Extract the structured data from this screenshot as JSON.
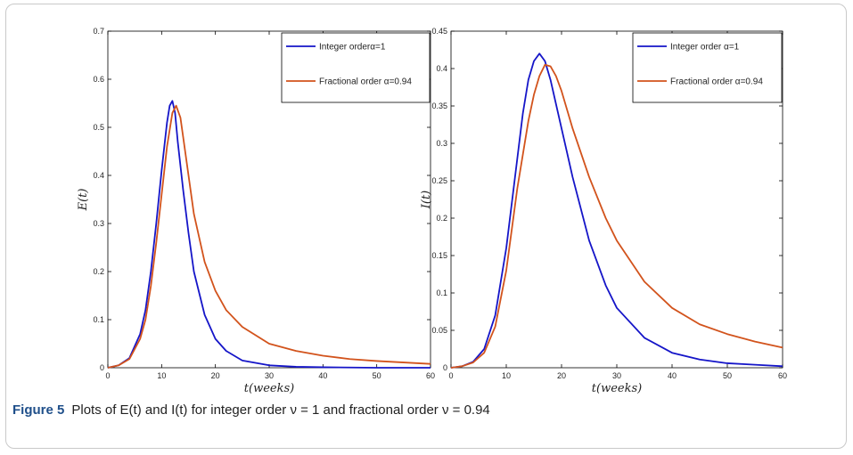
{
  "caption": {
    "label": "Figure 5",
    "text": "Plots of E(t) and I(t) for integer order ν = 1 and fractional order ν = 0.94"
  },
  "colors": {
    "integer": "#1515c8",
    "fractional": "#d2531c"
  },
  "chart_data": [
    {
      "type": "line",
      "xlabel": "t(weeks)",
      "ylabel": "E(t)",
      "xlim": [
        0,
        60
      ],
      "ylim": [
        0,
        0.7
      ],
      "xticks": [
        "0",
        "10",
        "20",
        "30",
        "40",
        "50",
        "60"
      ],
      "yticks": [
        "0",
        "0.1",
        "0.2",
        "0.3",
        "0.4",
        "0.5",
        "0.6",
        "0.7"
      ],
      "legend_position": "top-right",
      "series": [
        {
          "name": "Integer orderα=1",
          "color": "#1515c8",
          "points": [
            [
              0,
              0
            ],
            [
              2,
              0.005
            ],
            [
              4,
              0.02
            ],
            [
              6,
              0.07
            ],
            [
              7,
              0.12
            ],
            [
              8,
              0.2
            ],
            [
              9,
              0.3
            ],
            [
              10,
              0.41
            ],
            [
              11,
              0.51
            ],
            [
              11.5,
              0.545
            ],
            [
              12,
              0.555
            ],
            [
              12.5,
              0.53
            ],
            [
              13,
              0.47
            ],
            [
              14,
              0.37
            ],
            [
              15,
              0.28
            ],
            [
              16,
              0.2
            ],
            [
              18,
              0.11
            ],
            [
              20,
              0.06
            ],
            [
              22,
              0.035
            ],
            [
              25,
              0.015
            ],
            [
              30,
              0.005
            ],
            [
              35,
              0.002
            ],
            [
              40,
              0.001
            ],
            [
              50,
              0
            ],
            [
              60,
              0
            ]
          ]
        },
        {
          "name": "Fractional order α=0.94",
          "color": "#d2531c",
          "points": [
            [
              0,
              0
            ],
            [
              2,
              0.005
            ],
            [
              4,
              0.018
            ],
            [
              6,
              0.06
            ],
            [
              7,
              0.1
            ],
            [
              8,
              0.17
            ],
            [
              9,
              0.26
            ],
            [
              10,
              0.36
            ],
            [
              11,
              0.46
            ],
            [
              12,
              0.53
            ],
            [
              12.7,
              0.545
            ],
            [
              13.5,
              0.52
            ],
            [
              14,
              0.48
            ],
            [
              15,
              0.4
            ],
            [
              16,
              0.32
            ],
            [
              18,
              0.22
            ],
            [
              20,
              0.16
            ],
            [
              22,
              0.12
            ],
            [
              25,
              0.085
            ],
            [
              30,
              0.05
            ],
            [
              35,
              0.035
            ],
            [
              40,
              0.025
            ],
            [
              45,
              0.018
            ],
            [
              50,
              0.014
            ],
            [
              55,
              0.011
            ],
            [
              60,
              0.008
            ]
          ]
        }
      ]
    },
    {
      "type": "line",
      "xlabel": "t(weeks)",
      "ylabel": "I(t)",
      "xlim": [
        0,
        60
      ],
      "ylim": [
        0,
        0.45
      ],
      "xticks": [
        "0",
        "10",
        "20",
        "30",
        "40",
        "50",
        "60"
      ],
      "yticks": [
        "0",
        "0.05",
        "0.1",
        "0.15",
        "0.2",
        "0.25",
        "0.3",
        "0.35",
        "0.4",
        "0.45"
      ],
      "legend_position": "top-right",
      "series": [
        {
          "name": "Integer order α=1",
          "color": "#1515c8",
          "points": [
            [
              0,
              0
            ],
            [
              2,
              0.002
            ],
            [
              4,
              0.008
            ],
            [
              6,
              0.025
            ],
            [
              8,
              0.07
            ],
            [
              10,
              0.16
            ],
            [
              12,
              0.28
            ],
            [
              13,
              0.34
            ],
            [
              14,
              0.385
            ],
            [
              15,
              0.41
            ],
            [
              16,
              0.42
            ],
            [
              17,
              0.41
            ],
            [
              18,
              0.385
            ],
            [
              20,
              0.32
            ],
            [
              22,
              0.255
            ],
            [
              25,
              0.17
            ],
            [
              28,
              0.11
            ],
            [
              30,
              0.08
            ],
            [
              35,
              0.04
            ],
            [
              40,
              0.02
            ],
            [
              45,
              0.011
            ],
            [
              50,
              0.006
            ],
            [
              55,
              0.004
            ],
            [
              60,
              0.002
            ]
          ]
        },
        {
          "name": "Fractional order α=0.94",
          "color": "#d2531c",
          "points": [
            [
              0,
              0
            ],
            [
              2,
              0.002
            ],
            [
              4,
              0.007
            ],
            [
              6,
              0.02
            ],
            [
              8,
              0.055
            ],
            [
              10,
              0.13
            ],
            [
              12,
              0.24
            ],
            [
              14,
              0.33
            ],
            [
              15,
              0.365
            ],
            [
              16,
              0.39
            ],
            [
              17,
              0.405
            ],
            [
              18,
              0.403
            ],
            [
              19,
              0.39
            ],
            [
              20,
              0.37
            ],
            [
              22,
              0.32
            ],
            [
              25,
              0.255
            ],
            [
              28,
              0.2
            ],
            [
              30,
              0.17
            ],
            [
              35,
              0.115
            ],
            [
              40,
              0.08
            ],
            [
              45,
              0.058
            ],
            [
              50,
              0.045
            ],
            [
              55,
              0.035
            ],
            [
              60,
              0.027
            ]
          ]
        }
      ]
    }
  ]
}
